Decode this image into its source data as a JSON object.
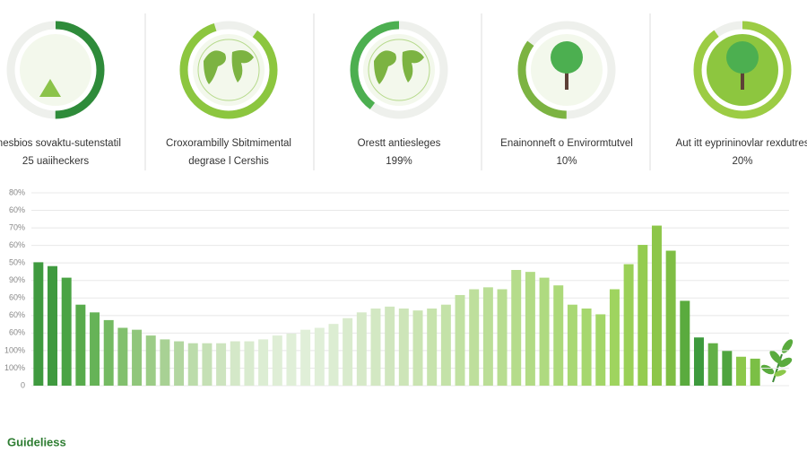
{
  "header": {
    "cards": [
      {
        "title": "Snesbios sovaktu-sutenstatil",
        "subtitle": "25 uaiiheckers"
      },
      {
        "title": "Croxorambilly Sbitmimental",
        "subtitle": "degrase l Cershis"
      },
      {
        "title": "Orestt antiesleges",
        "subtitle": "199%"
      },
      {
        "title": "Enainonneft o Envirormtutvel",
        "subtitle": "10%"
      },
      {
        "title": "Aut itt eyprininovlar rexdutres",
        "subtitle": "20%"
      }
    ]
  },
  "chart_data": {
    "type": "bar",
    "title": "Guideliess",
    "y_axis_labels": [
      "0",
      "100%",
      "100%",
      "60%",
      "60%",
      "60%",
      "90%",
      "50%",
      "60%",
      "70%",
      "60%",
      "80%"
    ],
    "ylim": [
      0,
      10
    ],
    "grid": true,
    "values": [
      6.4,
      6.2,
      5.6,
      4.2,
      3.8,
      3.4,
      3.0,
      2.9,
      2.6,
      2.4,
      2.3,
      2.2,
      2.2,
      2.2,
      2.3,
      2.3,
      2.4,
      2.6,
      2.7,
      2.9,
      3.0,
      3.2,
      3.5,
      3.8,
      4.0,
      4.1,
      4.0,
      3.9,
      4.0,
      4.2,
      4.7,
      5.0,
      5.1,
      5.0,
      6.0,
      5.9,
      5.6,
      5.2,
      4.2,
      4.0,
      3.7,
      5.0,
      6.3,
      7.3,
      8.3,
      7.0,
      4.4,
      2.5,
      2.2,
      1.8,
      1.5,
      1.4
    ],
    "colors": [
      "#3f9a3f",
      "#3f9a3f",
      "#4aa344",
      "#58ab4c",
      "#66b357",
      "#74ba62",
      "#82c06e",
      "#90c67b",
      "#9ccc87",
      "#a8d194",
      "#b2d6a0",
      "#bcdcab",
      "#c5e0b5",
      "#cde4bf",
      "#d4e8c8",
      "#d9ebcf",
      "#dcedd3",
      "#dfeed6",
      "#e0efd8",
      "#e0efd8",
      "#e0efd8",
      "#dcedd2",
      "#d9ebcd",
      "#d6e9c8",
      "#d3e8c3",
      "#d0e6be",
      "#cde5b8",
      "#cae4b2",
      "#c7e3ad",
      "#c4e2a8",
      "#c1e1a2",
      "#bedf9c",
      "#bbde97",
      "#b8dd91",
      "#b5dc8b",
      "#b2db85",
      "#afda80",
      "#acd97a",
      "#a9d874",
      "#a6d76e",
      "#a3d668",
      "#9fd45f",
      "#9ad057",
      "#94cc50",
      "#8dc649",
      "#7fbe44",
      "#5aab3e",
      "#3d9a3d",
      "#62b046",
      "#4fa43f",
      "#8cc84b",
      "#7bbf45"
    ]
  }
}
